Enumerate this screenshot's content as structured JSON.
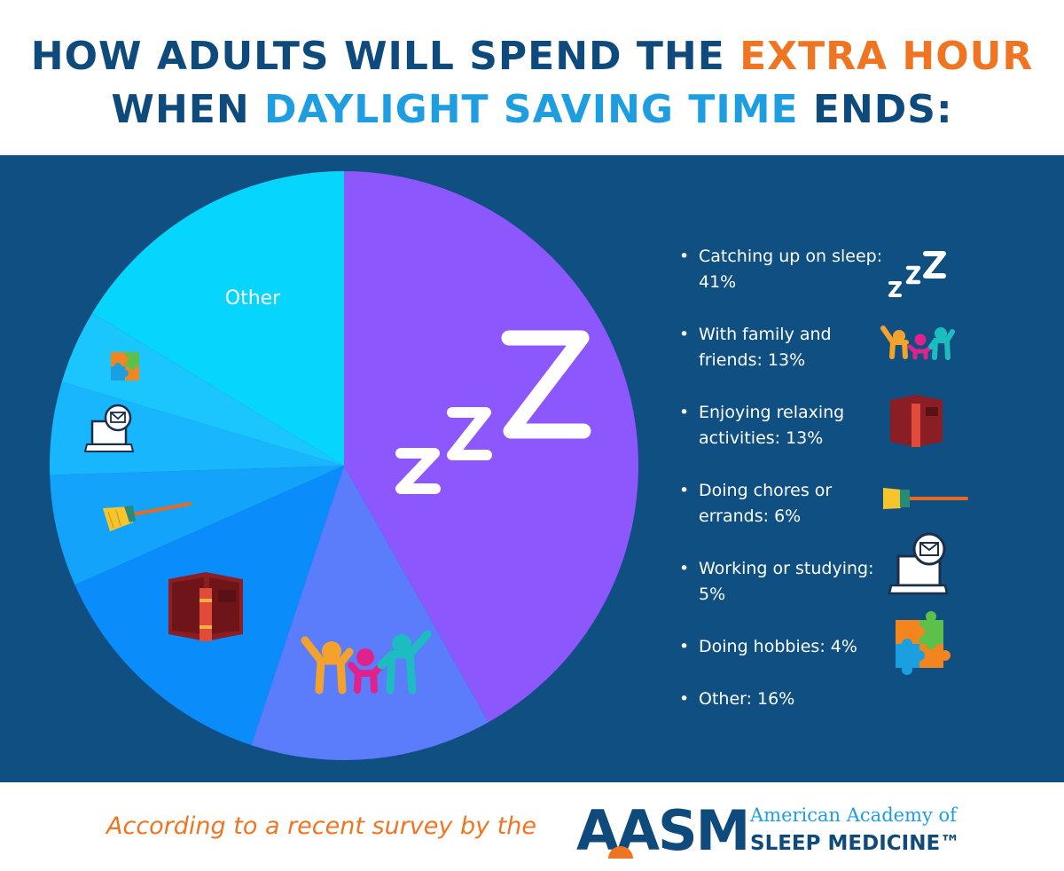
{
  "title": {
    "line1_before": "HOW ADULTS WILL SPEND THE ",
    "line1_highlight": "EXTRA HOUR",
    "line2_before": "WHEN ",
    "line2_highlight": "DAYLIGHT SAVING TIME",
    "line2_after": " ENDS:"
  },
  "colors": {
    "title_navy": "#0f4a7d",
    "title_orange": "#f07522",
    "title_blue": "#1e9ee0",
    "panel_bg": "#0f4f82"
  },
  "chart_data": {
    "type": "pie",
    "slices": [
      {
        "label": "Catching up on sleep: 41%",
        "value": 41,
        "color": "#8c57fc",
        "icon": "zzz-icon"
      },
      {
        "label": "With family and friends: 13%",
        "value": 13,
        "color": "#5b7dfc",
        "icon": "family-icon"
      },
      {
        "label": "Enjoying relaxing activities: 13%",
        "value": 13,
        "color": "#0a8dfa",
        "icon": "book-icon"
      },
      {
        "label": "Doing chores or errands: 6%",
        "value": 6,
        "color": "#14a3fb",
        "icon": "broom-icon"
      },
      {
        "label": "Working or studying: 5%",
        "value": 5,
        "color": "#17b6fd",
        "icon": "laptop-icon"
      },
      {
        "label": "Doing hobbies: 4%",
        "value": 4,
        "color": "#1bc5fd",
        "icon": "puzzle-icon"
      },
      {
        "label": "Other: 16%",
        "value": 16,
        "color": "#06d6fd",
        "icon": ""
      }
    ],
    "other_slice_label": "Other"
  },
  "footer": {
    "source_text": "According to a recent survey by the",
    "logo_letters": "AASM",
    "logo_line1": "American Academy of",
    "logo_line2": "SLEEP MEDICINE™"
  }
}
